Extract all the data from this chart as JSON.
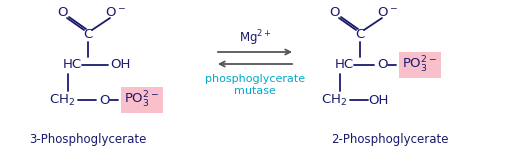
{
  "bg_color": "#ffffff",
  "dark_color": "#1a1a6e",
  "cyan_color": "#00aacc",
  "pink_bg": "#f9c0cb",
  "arrow_color": "#555555",
  "fig_width": 5.07,
  "fig_height": 1.57,
  "dpi": 100,
  "title1": "3-Phosphoglycerate",
  "title2": "2-Phosphoglycerate",
  "enzyme": "phosphoglycerate\nmutase",
  "mg": "Mg$^{2+}$"
}
